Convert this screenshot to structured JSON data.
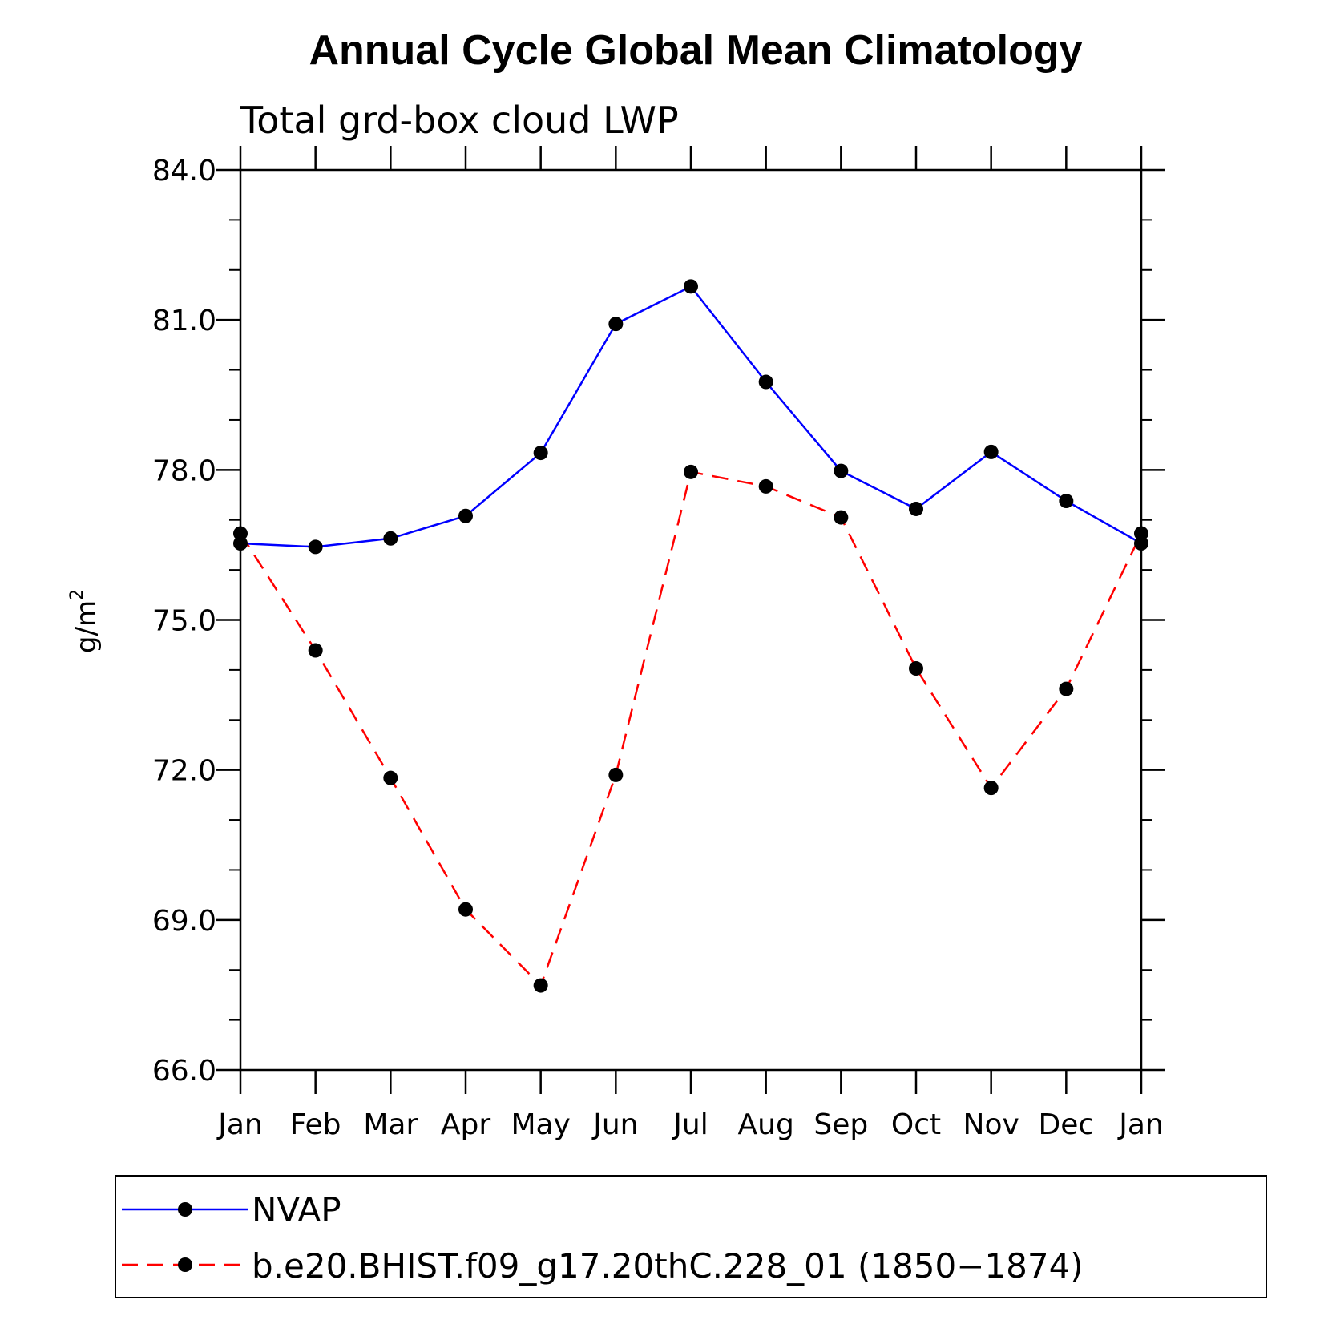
{
  "chart_data": {
    "type": "line",
    "title": "Annual Cycle Global Mean Climatology",
    "subtitle": "Total grd-box cloud LWP",
    "ylabel": "g/m",
    "ylabel_superscript": "2",
    "xlabel": "",
    "categories": [
      "Jan",
      "Feb",
      "Mar",
      "Apr",
      "May",
      "Jun",
      "Jul",
      "Aug",
      "Sep",
      "Oct",
      "Nov",
      "Dec",
      "Jan"
    ],
    "ylim": [
      66.0,
      84.0
    ],
    "yticks": [
      "66.0",
      "69.0",
      "72.0",
      "75.0",
      "78.0",
      "81.0",
      "84.0"
    ],
    "grid": false,
    "legend_position": "bottom",
    "series": [
      {
        "name": "NVAP",
        "color": "#0000ff",
        "dash": "solid",
        "values": [
          76.53,
          76.46,
          76.63,
          77.08,
          78.34,
          80.92,
          81.67,
          79.76,
          77.98,
          77.22,
          78.36,
          77.38,
          76.53
        ]
      },
      {
        "name": "b.e20.BHIST.f09_g17.20thC.228_01 (1850−1874)",
        "color": "#ff0000",
        "dash": "dashed",
        "values": [
          76.73,
          74.39,
          71.84,
          69.21,
          67.69,
          71.9,
          77.96,
          77.67,
          77.05,
          74.03,
          71.64,
          73.62,
          76.73
        ]
      }
    ]
  }
}
